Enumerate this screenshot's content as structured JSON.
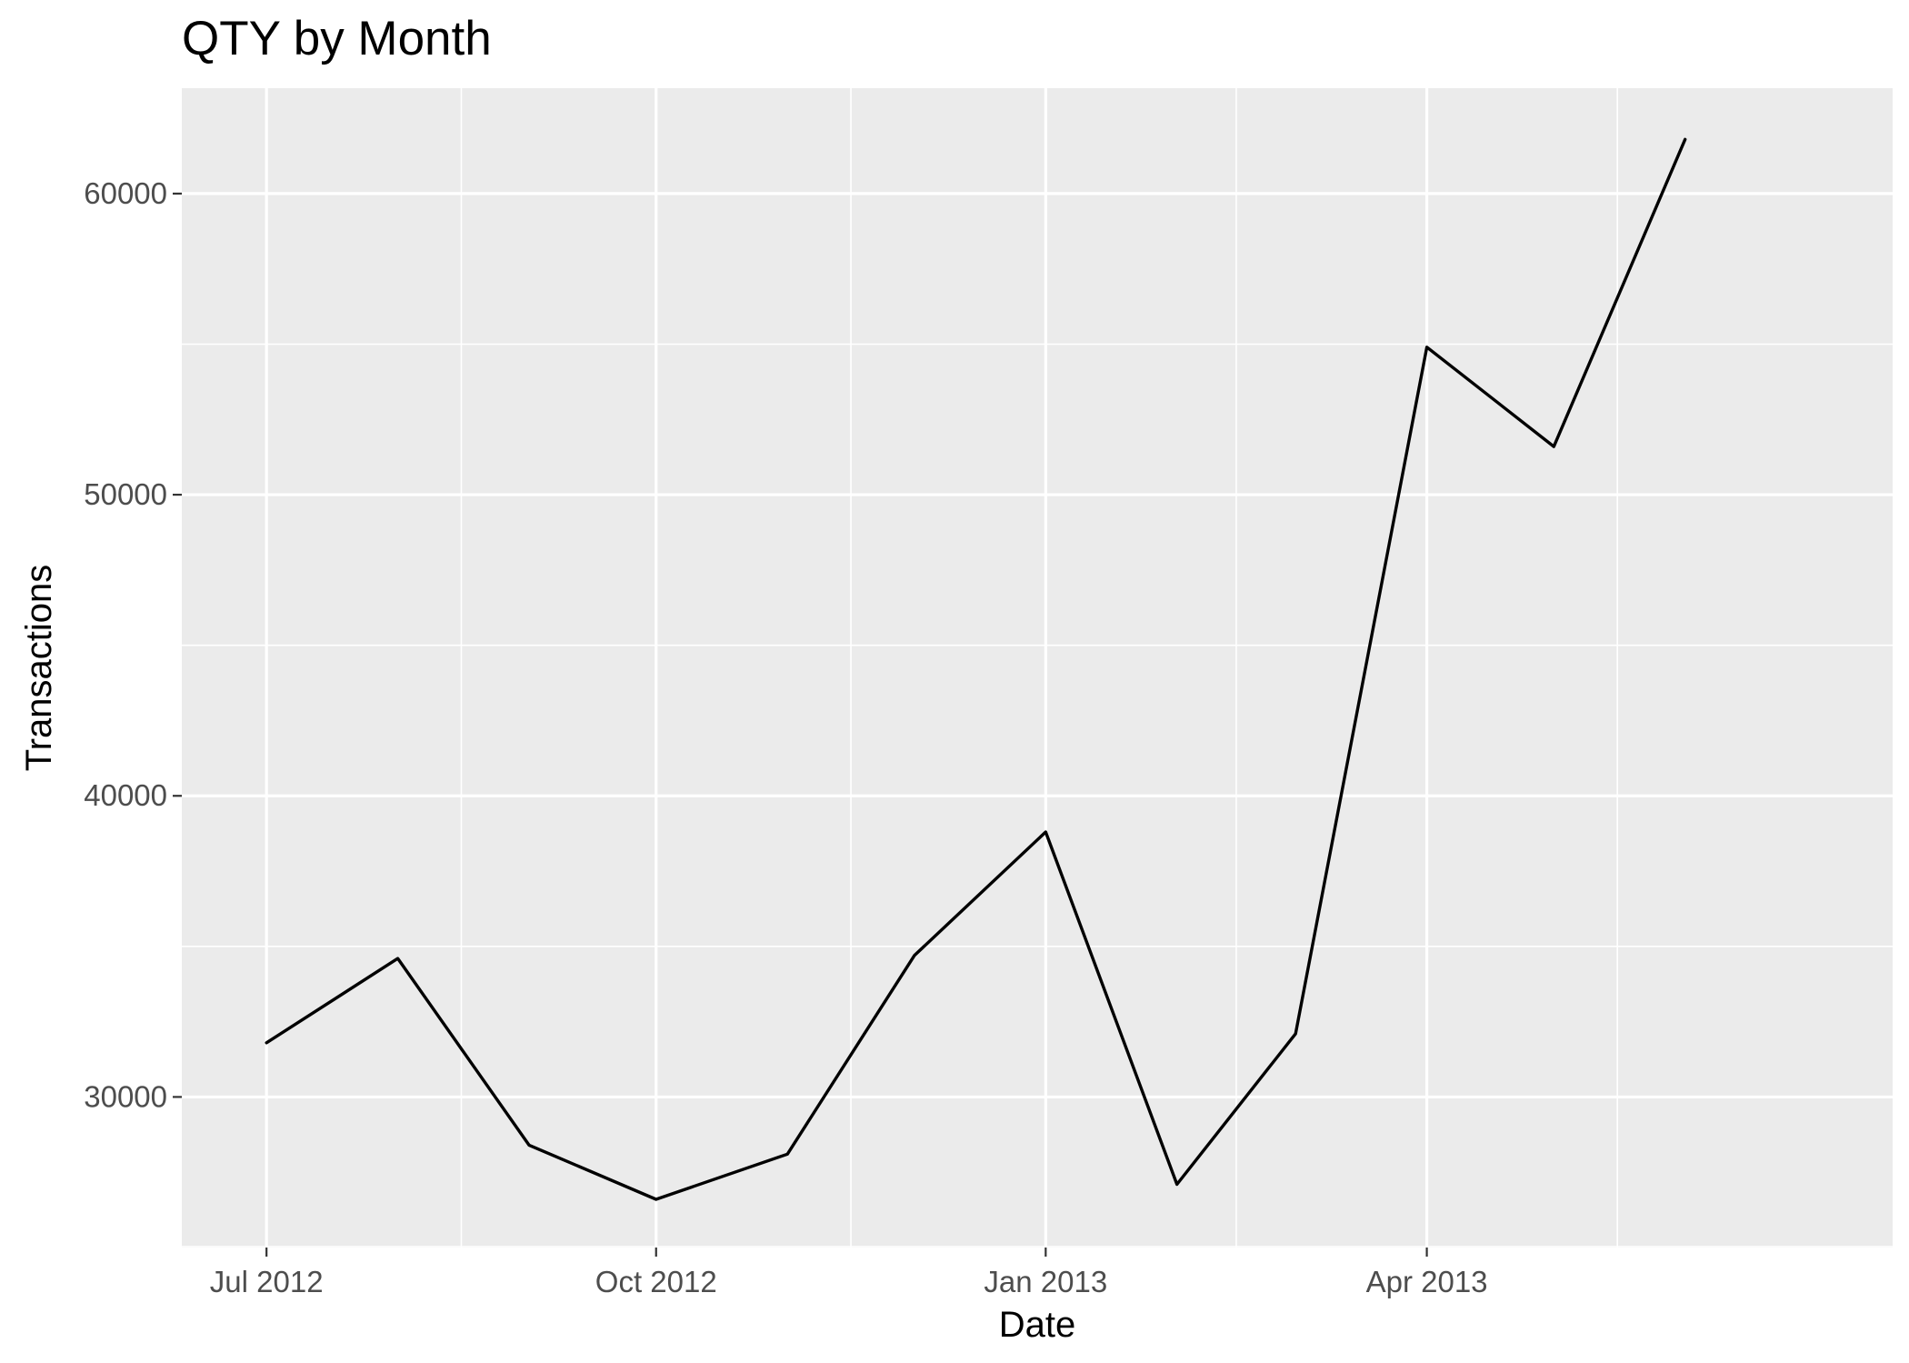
{
  "chart_data": {
    "type": "line",
    "title": "QTY by Month",
    "xlabel": "Date",
    "ylabel": "Transactions",
    "x_axis_kind": "date",
    "xlim": [
      "2012-06-11",
      "2013-07-20"
    ],
    "ylim": [
      25000,
      63500
    ],
    "x_ticks": [
      {
        "date": "2012-07-01",
        "label": "Jul 2012"
      },
      {
        "date": "2012-10-01",
        "label": "Oct 2012"
      },
      {
        "date": "2013-01-01",
        "label": "Jan 2013"
      },
      {
        "date": "2013-04-01",
        "label": "Apr 2013"
      }
    ],
    "x_minor_ticks": [
      "2012-08-16",
      "2012-11-16",
      "2013-02-15",
      "2013-05-16"
    ],
    "y_ticks": [
      30000,
      40000,
      50000,
      60000
    ],
    "y_tick_labels": [
      "30000",
      "40000",
      "50000",
      "60000"
    ],
    "y_minor_ticks": [
      35000,
      45000,
      55000
    ],
    "grid": true,
    "legend": "none",
    "series": [
      {
        "color": "#000000",
        "points": [
          {
            "x": "2012-07-01",
            "y": 31800
          },
          {
            "x": "2012-08-01",
            "y": 34600
          },
          {
            "x": "2012-09-01",
            "y": 28400
          },
          {
            "x": "2012-10-01",
            "y": 26600
          },
          {
            "x": "2012-11-01",
            "y": 28100
          },
          {
            "x": "2012-12-01",
            "y": 34700
          },
          {
            "x": "2013-01-01",
            "y": 38800
          },
          {
            "x": "2013-02-01",
            "y": 27100
          },
          {
            "x": "2013-03-01",
            "y": 32100
          },
          {
            "x": "2013-04-01",
            "y": 54900
          },
          {
            "x": "2013-05-01",
            "y": 51600
          },
          {
            "x": "2013-06-01",
            "y": 61800
          }
        ]
      }
    ],
    "colors": {
      "panel_background": "#ebebeb",
      "grid": "#ffffff",
      "tick_label": "#4d4d4d",
      "line": "#000000"
    }
  }
}
